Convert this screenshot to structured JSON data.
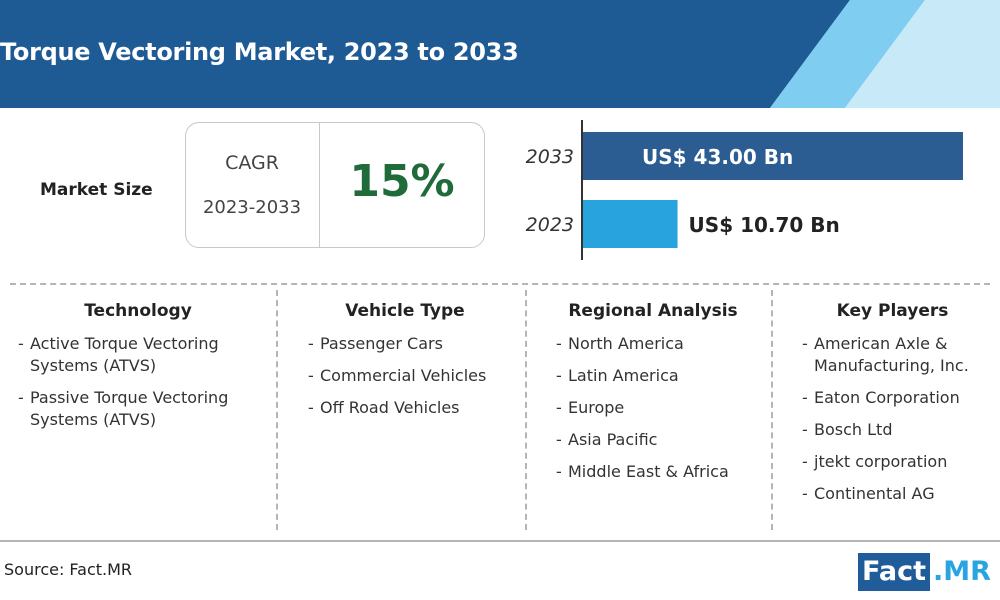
{
  "title": "Torque Vectoring Market, 2023 to 2033",
  "market_size_label": "Market Size",
  "cagr": {
    "label": "CAGR",
    "period": "2023-2033",
    "value": "15%"
  },
  "chart_data": {
    "type": "bar",
    "orientation": "horizontal",
    "categories": [
      "2033",
      "2023"
    ],
    "values": [
      43.0,
      10.7
    ],
    "value_labels": [
      "US$ 43.00 Bn",
      "US$ 10.70 Bn"
    ],
    "colors": [
      "#2b5d92",
      "#29a3dd"
    ]
  },
  "segments": [
    {
      "title": "Technology",
      "items": [
        "Active Torque Vectoring Systems (ATVS)",
        "Passive Torque Vectoring Systems (ATVS)"
      ]
    },
    {
      "title": "Vehicle Type",
      "items": [
        "Passenger Cars",
        "Commercial Vehicles",
        "Off Road Vehicles"
      ]
    },
    {
      "title": "Regional Analysis",
      "items": [
        "North America",
        "Latin America",
        "Europe",
        "Asia Pacific",
        "Middle East & Africa"
      ]
    },
    {
      "title": "Key Players",
      "items": [
        "American Axle & Manufacturing, Inc.",
        "Eaton Corporation",
        "Bosch Ltd",
        "jtekt corporation",
        "Continental AG"
      ]
    }
  ],
  "source": "Source: Fact.MR",
  "logo": {
    "part1": "Fact",
    "part2": ".MR"
  },
  "colors": {
    "header": "#1e5a94",
    "header_accent": "#7fcdf0",
    "cagr_value": "#1f6b3a"
  }
}
